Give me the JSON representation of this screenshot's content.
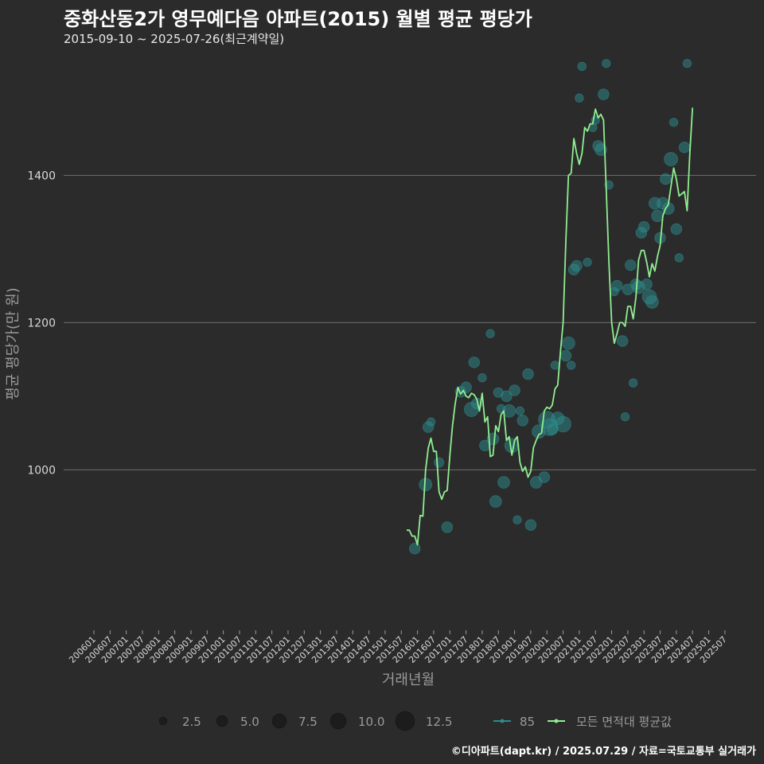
{
  "header": {
    "title": "중화산동2가 영무예다음 아파트(2015) 월별 평균 평당가",
    "subtitle": "2015-09-10 ~ 2025-07-26(최근계약일)"
  },
  "footer": "©디아파트(dapt.kr) / 2025.07.29 / 자료=국토교통부 실거래가",
  "colors": {
    "background": "#2b2b2c",
    "grid": "#6e6e6e",
    "line": "#90ee90",
    "bubble": "#2e8b8b"
  },
  "chart_data": {
    "type": "line",
    "title": "중화산동2가 영무예다음 아파트(2015) 월별 평균 평당가",
    "xlabel": "거래년월",
    "ylabel": "평균 평당가(만 원)",
    "ylim": [
      782,
      1582
    ],
    "yticks": [
      1000,
      1200,
      1400
    ],
    "grid": true,
    "x_tick_labels": [
      "200601",
      "200607",
      "200701",
      "200707",
      "200801",
      "200807",
      "200901",
      "200907",
      "201001",
      "201007",
      "201101",
      "201107",
      "201201",
      "201207",
      "201301",
      "201307",
      "201401",
      "201407",
      "201501",
      "201507",
      "201601",
      "201607",
      "201701",
      "201707",
      "201801",
      "201807",
      "201901",
      "201907",
      "202001",
      "202007",
      "202101",
      "202107",
      "202201",
      "202207",
      "202301",
      "202307",
      "202401",
      "202407",
      "202501",
      "202507"
    ],
    "legend": {
      "size_title": "",
      "size_values": [
        "2.5",
        "5.0",
        "7.5",
        "10.0",
        "12.5"
      ],
      "series_labels": [
        "85",
        "모든 면적대 평균값"
      ]
    },
    "series": [
      {
        "name": "모든 면적대 평균값",
        "type": "line",
        "start": "201509",
        "values": [
          918,
          918,
          910,
          910,
          898,
          938,
          937,
          1000,
          1030,
          1043,
          1025,
          1025,
          970,
          960,
          970,
          972,
          1020,
          1060,
          1090,
          1112,
          1103,
          1108,
          1100,
          1098,
          1104,
          1102,
          1096,
          1080,
          1104,
          1065,
          1072,
          1018,
          1020,
          1060,
          1052,
          1075,
          1080,
          1040,
          1045,
          1020,
          1040,
          1045,
          1010,
          998,
          1004,
          990,
          998,
          1030,
          1040,
          1048,
          1050,
          1080,
          1085,
          1083,
          1088,
          1110,
          1115,
          1160,
          1200,
          1310,
          1400,
          1403,
          1450,
          1430,
          1415,
          1430,
          1465,
          1460,
          1470,
          1470,
          1490,
          1478,
          1483,
          1475,
          1380,
          1280,
          1200,
          1172,
          1185,
          1200,
          1200,
          1195,
          1222,
          1222,
          1205,
          1235,
          1285,
          1298,
          1298,
          1282,
          1262,
          1280,
          1270,
          1290,
          1305,
          1345,
          1355,
          1360,
          1385,
          1410,
          1395,
          1372,
          1375,
          1378,
          1352,
          1430,
          1492
        ]
      },
      {
        "name": "85",
        "type": "bubble",
        "points": [
          {
            "x": "201512",
            "y": 893,
            "size": 4
          },
          {
            "x": "201604",
            "y": 980,
            "size": 6
          },
          {
            "x": "201605",
            "y": 1058,
            "size": 4
          },
          {
            "x": "201606",
            "y": 1065,
            "size": 2
          },
          {
            "x": "201609",
            "y": 1010,
            "size": 3
          },
          {
            "x": "201612",
            "y": 922,
            "size": 4
          },
          {
            "x": "201705",
            "y": 1106,
            "size": 4
          },
          {
            "x": "201707",
            "y": 1112,
            "size": 4
          },
          {
            "x": "201709",
            "y": 1082,
            "size": 8
          },
          {
            "x": "201710",
            "y": 1146,
            "size": 4
          },
          {
            "x": "201711",
            "y": 1090,
            "size": 4
          },
          {
            "x": "201801",
            "y": 1125,
            "size": 2
          },
          {
            "x": "201802",
            "y": 1033,
            "size": 4
          },
          {
            "x": "201804",
            "y": 1185,
            "size": 2
          },
          {
            "x": "201805",
            "y": 1042,
            "size": 5
          },
          {
            "x": "201806",
            "y": 957,
            "size": 5
          },
          {
            "x": "201807",
            "y": 1105,
            "size": 3
          },
          {
            "x": "201808",
            "y": 1083,
            "size": 2
          },
          {
            "x": "201809",
            "y": 983,
            "size": 5
          },
          {
            "x": "201810",
            "y": 1100,
            "size": 4
          },
          {
            "x": "201811",
            "y": 1080,
            "size": 6
          },
          {
            "x": "201812",
            "y": 1033,
            "size": 8
          },
          {
            "x": "201901",
            "y": 1108,
            "size": 4
          },
          {
            "x": "201902",
            "y": 932,
            "size": 2
          },
          {
            "x": "201903",
            "y": 1080,
            "size": 2
          },
          {
            "x": "201904",
            "y": 1067,
            "size": 4
          },
          {
            "x": "201906",
            "y": 1130,
            "size": 4
          },
          {
            "x": "201907",
            "y": 925,
            "size": 4
          },
          {
            "x": "201909",
            "y": 983,
            "size": 5
          },
          {
            "x": "201910",
            "y": 1052,
            "size": 7
          },
          {
            "x": "201912",
            "y": 990,
            "size": 4
          },
          {
            "x": "202001",
            "y": 1068,
            "size": 12
          },
          {
            "x": "202002",
            "y": 1058,
            "size": 12
          },
          {
            "x": "202003",
            "y": 1055,
            "size": 4
          },
          {
            "x": "202004",
            "y": 1142,
            "size": 2
          },
          {
            "x": "202005",
            "y": 1070,
            "size": 6
          },
          {
            "x": "202007",
            "y": 1062,
            "size": 10
          },
          {
            "x": "202008",
            "y": 1155,
            "size": 4
          },
          {
            "x": "202009",
            "y": 1172,
            "size": 6
          },
          {
            "x": "202010",
            "y": 1142,
            "size": 2
          },
          {
            "x": "202011",
            "y": 1272,
            "size": 4
          },
          {
            "x": "202012",
            "y": 1277,
            "size": 4
          },
          {
            "x": "202101",
            "y": 1505,
            "size": 2
          },
          {
            "x": "202102",
            "y": 1548,
            "size": 2
          },
          {
            "x": "202104",
            "y": 1282,
            "size": 2
          },
          {
            "x": "202106",
            "y": 1465,
            "size": 2
          },
          {
            "x": "202107",
            "y": 1475,
            "size": 2
          },
          {
            "x": "202108",
            "y": 1440,
            "size": 4
          },
          {
            "x": "202109",
            "y": 1435,
            "size": 5
          },
          {
            "x": "202110",
            "y": 1510,
            "size": 4
          },
          {
            "x": "202111",
            "y": 1552,
            "size": 2
          },
          {
            "x": "202112",
            "y": 1387,
            "size": 2
          },
          {
            "x": "202202",
            "y": 1242,
            "size": 2
          },
          {
            "x": "202203",
            "y": 1250,
            "size": 4
          },
          {
            "x": "202205",
            "y": 1175,
            "size": 4
          },
          {
            "x": "202206",
            "y": 1072,
            "size": 2
          },
          {
            "x": "202207",
            "y": 1245,
            "size": 4
          },
          {
            "x": "202208",
            "y": 1278,
            "size": 4
          },
          {
            "x": "202209",
            "y": 1118,
            "size": 2
          },
          {
            "x": "202210",
            "y": 1252,
            "size": 4
          },
          {
            "x": "202211",
            "y": 1248,
            "size": 6
          },
          {
            "x": "202212",
            "y": 1322,
            "size": 4
          },
          {
            "x": "202301",
            "y": 1330,
            "size": 4
          },
          {
            "x": "202302",
            "y": 1252,
            "size": 4
          },
          {
            "x": "202303",
            "y": 1235,
            "size": 8
          },
          {
            "x": "202304",
            "y": 1228,
            "size": 6
          },
          {
            "x": "202305",
            "y": 1362,
            "size": 5
          },
          {
            "x": "202306",
            "y": 1345,
            "size": 5
          },
          {
            "x": "202307",
            "y": 1315,
            "size": 4
          },
          {
            "x": "202308",
            "y": 1362,
            "size": 5
          },
          {
            "x": "202309",
            "y": 1395,
            "size": 4
          },
          {
            "x": "202310",
            "y": 1355,
            "size": 5
          },
          {
            "x": "202311",
            "y": 1422,
            "size": 7
          },
          {
            "x": "202312",
            "y": 1472,
            "size": 2
          },
          {
            "x": "202401",
            "y": 1327,
            "size": 4
          },
          {
            "x": "202402",
            "y": 1288,
            "size": 2
          },
          {
            "x": "202404",
            "y": 1438,
            "size": 4
          },
          {
            "x": "202405",
            "y": 1552,
            "size": 2
          }
        ]
      }
    ]
  }
}
